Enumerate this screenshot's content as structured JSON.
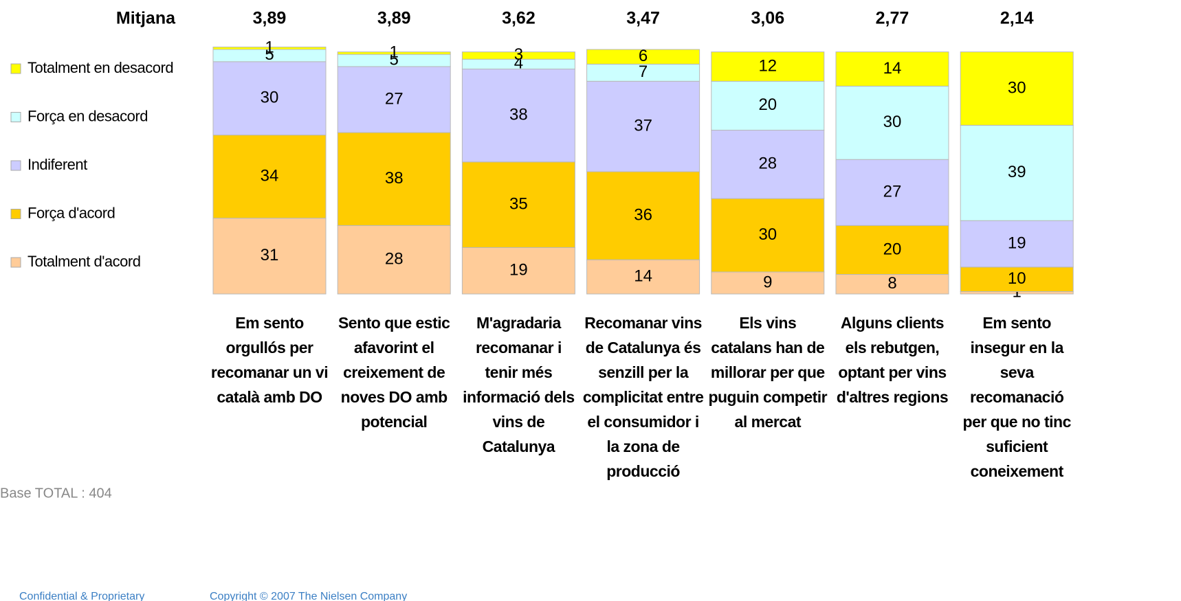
{
  "chart_data": {
    "type": "bar",
    "stacked": true,
    "categories": [
      "Em sento orgullós per recomanar un vi català amb DO",
      "Sento que estic afavorint el creixement de noves DO amb potencial",
      "M'agradaria recomanar i tenir més informació dels vins de Catalunya",
      "Recomanar vins de Catalunya és senzill per la complicitat entre el consumidor i la zona de producció",
      "Els vins catalans han de millorar per que puguin competir al mercat",
      "Alguns clients els rebutgen, optant per vins d'altres regions",
      "Em sento insegur en la seva recomanació per que no tinc suficient coneixement"
    ],
    "series": [
      {
        "name": "Totalment d'acord",
        "color": "#ffcc99",
        "values": [
          31,
          28,
          19,
          14,
          9,
          8,
          1
        ]
      },
      {
        "name": "Força d'acord",
        "color": "#ffcc00",
        "values": [
          34,
          38,
          35,
          36,
          30,
          20,
          10
        ]
      },
      {
        "name": "Indiferent",
        "color": "#ccccff",
        "values": [
          30,
          27,
          38,
          37,
          28,
          27,
          19
        ]
      },
      {
        "name": "Força en desacord",
        "color": "#ccffff",
        "values": [
          5,
          5,
          4,
          7,
          20,
          30,
          39
        ]
      },
      {
        "name": "Totalment en desacord",
        "color": "#ffff00",
        "values": [
          1,
          1,
          3,
          6,
          12,
          14,
          30
        ]
      }
    ],
    "means": {
      "label": "Mitjana",
      "values": [
        3.89,
        3.89,
        3.62,
        3.47,
        3.06,
        2.77,
        2.14
      ],
      "value_labels": [
        "3,89",
        "3,89",
        "3,62",
        "3,47",
        "3,06",
        "2,77",
        "2,14"
      ]
    },
    "ylim": [
      0,
      100
    ],
    "note": "Base TOTAL : 404"
  },
  "footer": {
    "left": "Confidential & Proprietary",
    "right": "Copyright © 2007 The Nielsen Company"
  }
}
